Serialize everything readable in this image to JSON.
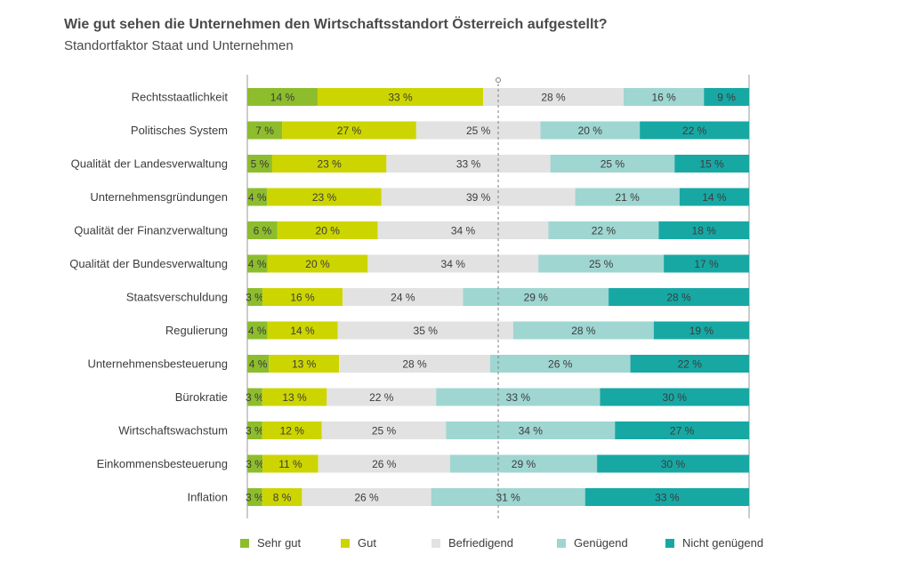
{
  "title": "Wie gut sehen die Unternehmen den Wirtschaftsstandort Österreich aufgestellt?",
  "subtitle": "Standortfaktor Staat und Unternehmen",
  "colors": {
    "sehr_gut": "#8dbd2d",
    "gut": "#cdd500",
    "befriedigend": "#e2e2e2",
    "genuegend": "#9fd6d1",
    "nicht_genuegend": "#17a8a4",
    "axis": "#9a9a9a",
    "midline": "#7f7f7f"
  },
  "chart_data": {
    "type": "bar",
    "orientation": "horizontal",
    "stacked": true,
    "normalized": true,
    "title": "Wie gut sehen die Unternehmen den Wirtschaftsstandort Österreich aufgestellt?",
    "subtitle": "Standortfaktor Staat und Unternehmen",
    "xlabel": "",
    "ylabel": "",
    "unit": "%",
    "legend_position": "bottom",
    "reference_line": "center (50 %)",
    "categories": [
      "Rechtsstaatlichkeit",
      "Politisches System",
      "Qualität der Landesverwaltung",
      "Unternehmensgründungen",
      "Qualität der Finanzverwaltung",
      "Qualität der Bundesverwaltung",
      "Staatsverschuldung",
      "Regulierung",
      "Unternehmensbesteuerung",
      "Bürokratie",
      "Wirtschaftswachstum",
      "Einkommensbesteuerung",
      "Inflation"
    ],
    "series": [
      {
        "name": "Sehr gut",
        "key": "sehr_gut",
        "values": [
          14,
          7,
          5,
          4,
          6,
          4,
          3,
          4,
          4,
          3,
          3,
          3,
          3
        ]
      },
      {
        "name": "Gut",
        "key": "gut",
        "values": [
          33,
          27,
          23,
          23,
          20,
          20,
          16,
          14,
          13,
          13,
          12,
          11,
          8
        ]
      },
      {
        "name": "Befriedigend",
        "key": "befriedigend",
        "values": [
          28,
          25,
          33,
          39,
          34,
          34,
          24,
          35,
          28,
          22,
          25,
          26,
          26
        ]
      },
      {
        "name": "Genügend",
        "key": "genuegend",
        "values": [
          16,
          20,
          25,
          21,
          22,
          25,
          29,
          28,
          26,
          33,
          34,
          29,
          31
        ]
      },
      {
        "name": "Nicht genügend",
        "key": "nicht_genuegend",
        "values": [
          9,
          22,
          15,
          14,
          18,
          17,
          28,
          19,
          22,
          30,
          27,
          30,
          33
        ]
      }
    ]
  }
}
